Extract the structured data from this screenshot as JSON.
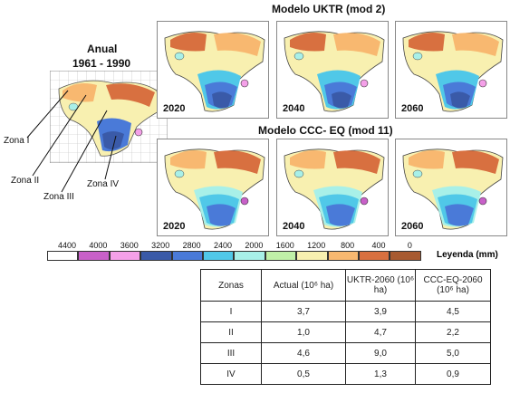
{
  "titles": {
    "actual": "Anual",
    "actual_period": "1961 - 1990",
    "ukt": "Modelo UKTR (mod 2)",
    "ccc": "Modelo CCC- EQ (mod 11)"
  },
  "zones": [
    "Zona I",
    "Zona II",
    "Zona III",
    "Zona IV"
  ],
  "years_ukt": [
    "2020",
    "2040",
    "2060"
  ],
  "years_ccc": [
    "2020",
    "2040",
    "2060"
  ],
  "legend": {
    "title": "Leyenda (mm)",
    "ticks": [
      "4400",
      "4000",
      "3600",
      "3200",
      "2800",
      "2400",
      "2000",
      "1600",
      "1200",
      "800",
      "400",
      "0"
    ],
    "colors": [
      "#ffffff",
      "#c860c8",
      "#f4a0e8",
      "#3a5aa8",
      "#4a7ad8",
      "#50c8e8",
      "#a8f0e8",
      "#c0f0a8",
      "#f8f0b0",
      "#f8b870",
      "#d87040",
      "#a85a30"
    ]
  },
  "table": {
    "headers": [
      "Zonas",
      "Actual (10⁶ ha)",
      "UKTR-2060 (10⁶ ha)",
      "CCC-EQ-2060 (10⁶ ha)"
    ],
    "rows": [
      [
        "I",
        "3,7",
        "3,9",
        "4,5"
      ],
      [
        "II",
        "1,0",
        "4,7",
        "2,2"
      ],
      [
        "III",
        "4,6",
        "9,0",
        "5,0"
      ],
      [
        "IV",
        "0,5",
        "1,3",
        "0,9"
      ]
    ]
  }
}
